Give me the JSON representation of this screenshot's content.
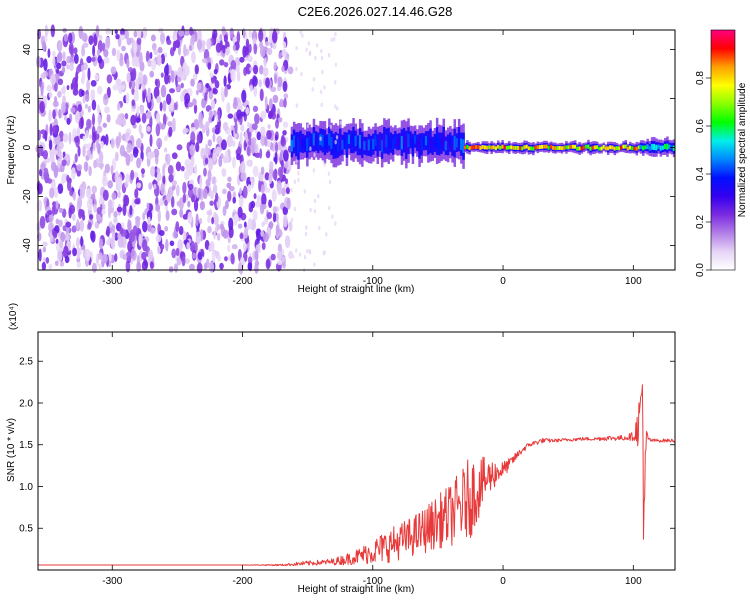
{
  "title": "C2E6.2026.027.14.46.G28",
  "chart_data": [
    {
      "type": "heatmap",
      "xlabel": "Height of straight line (km)",
      "ylabel": "Frequency (Hz)",
      "xlim": [
        -357,
        132
      ],
      "ylim": [
        -50,
        48
      ],
      "xticks": [
        -300,
        -200,
        -100,
        0,
        100
      ],
      "yticks": [
        -40,
        -20,
        0,
        20,
        40
      ],
      "grid": false,
      "colorbar": {
        "label": "Normalized spectral amplitude",
        "range": [
          0,
          1
        ],
        "ticks": [
          "0.0",
          "0.2",
          "0.4",
          "0.6",
          "0.8"
        ],
        "colormap": [
          "#ffffff",
          "#e6d4f6",
          "#b27ee8",
          "#7a2be0",
          "#3400f0",
          "#0010ff",
          "#0088ff",
          "#00f0e8",
          "#00ff00",
          "#88ff00",
          "#ffff00",
          "#ffa000",
          "#ff0000",
          "#ff0080"
        ]
      },
      "regions": [
        {
          "x": [
            -357,
            -163
          ],
          "description": "broadband noise",
          "amplitude": 0.1
        },
        {
          "x": [
            -163,
            -30
          ],
          "center_freq": 2,
          "half_width": 7,
          "amplitude": 0.4
        },
        {
          "x": [
            -30,
            105
          ],
          "center_freq": 0,
          "half_width": 2,
          "amplitude": 0.8
        },
        {
          "x": [
            105,
            132
          ],
          "center_freq": 0,
          "half_width": 3,
          "amplitude": 0.55
        }
      ]
    },
    {
      "type": "line",
      "xlabel": "Height of straight line (km)",
      "ylabel": "SNR (10 * v/v)",
      "yscale_label": "(x10⁴)",
      "xlim": [
        -357,
        132
      ],
      "ylim": [
        0,
        2.85
      ],
      "xticks": [
        -300,
        -200,
        -100,
        0,
        100
      ],
      "yticks": [
        "0.5",
        "1.0",
        "1.5",
        "2.0",
        "2.5"
      ],
      "grid": false,
      "series": [
        {
          "color": "#e83a3a",
          "x": [
            -357,
            -300,
            -250,
            -200,
            -170,
            -160,
            -150,
            -140,
            -130,
            -120,
            -110,
            -100,
            -90,
            -80,
            -70,
            -60,
            -50,
            -40,
            -30,
            -25,
            -20,
            -15,
            -10,
            -5,
            0,
            5,
            10,
            15,
            20,
            30,
            40,
            50,
            60,
            70,
            80,
            90,
            100,
            103,
            105,
            107,
            108,
            110,
            112,
            115,
            120,
            132
          ],
          "y": [
            0.06,
            0.06,
            0.06,
            0.06,
            0.06,
            0.07,
            0.08,
            0.09,
            0.1,
            0.13,
            0.17,
            0.22,
            0.28,
            0.34,
            0.4,
            0.48,
            0.58,
            0.66,
            0.8,
            0.88,
            0.96,
            1.05,
            1.12,
            1.17,
            1.2,
            1.27,
            1.36,
            1.44,
            1.5,
            1.55,
            1.55,
            1.56,
            1.57,
            1.57,
            1.58,
            1.58,
            1.6,
            1.7,
            1.8,
            2.2,
            0.6,
            1.6,
            1.56,
            1.55,
            1.55,
            1.55
          ],
          "noise": [
            0,
            0,
            0,
            0,
            0.01,
            0.02,
            0.03,
            0.03,
            0.04,
            0.07,
            0.1,
            0.15,
            0.2,
            0.22,
            0.24,
            0.28,
            0.32,
            0.38,
            0.45,
            0.5,
            0.4,
            0.3,
            0.22,
            0.15,
            0.1,
            0.07,
            0.05,
            0.04,
            0.03,
            0.03,
            0.02,
            0.02,
            0.02,
            0.02,
            0.03,
            0.03,
            0.05,
            0.2,
            0.4,
            0.5,
            0.5,
            0.1,
            0.03,
            0.02,
            0.02,
            0.02
          ]
        }
      ]
    }
  ]
}
